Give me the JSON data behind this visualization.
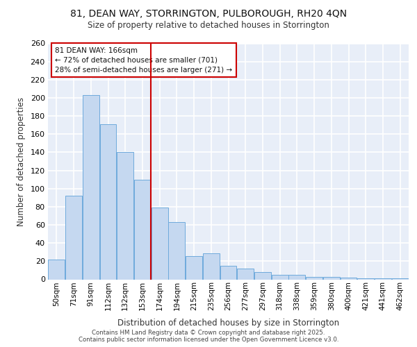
{
  "title1": "81, DEAN WAY, STORRINGTON, PULBOROUGH, RH20 4QN",
  "title2": "Size of property relative to detached houses in Storrington",
  "xlabel": "Distribution of detached houses by size in Storrington",
  "ylabel": "Number of detached properties",
  "categories": [
    "50sqm",
    "71sqm",
    "91sqm",
    "112sqm",
    "132sqm",
    "153sqm",
    "174sqm",
    "194sqm",
    "215sqm",
    "235sqm",
    "256sqm",
    "277sqm",
    "297sqm",
    "318sqm",
    "338sqm",
    "359sqm",
    "380sqm",
    "400sqm",
    "421sqm",
    "441sqm",
    "462sqm"
  ],
  "values": [
    22,
    92,
    203,
    171,
    140,
    110,
    79,
    63,
    26,
    29,
    15,
    12,
    8,
    5,
    5,
    3,
    3,
    2,
    1,
    1,
    1
  ],
  "bar_color": "#c5d8f0",
  "bar_edge_color": "#6eaadc",
  "background_color": "#e8eef8",
  "grid_color": "#ffffff",
  "vline_color": "#cc0000",
  "vline_label": "81 DEAN WAY: 166sqm",
  "annotation_line1": "← 72% of detached houses are smaller (701)",
  "annotation_line2": "28% of semi-detached houses are larger (271) →",
  "annotation_box_edge": "#cc0000",
  "annotation_box_bg": "#ffffff",
  "ylim": [
    0,
    260
  ],
  "yticks": [
    0,
    20,
    40,
    60,
    80,
    100,
    120,
    140,
    160,
    180,
    200,
    220,
    240,
    260
  ],
  "fig_bg": "#ffffff",
  "footer1": "Contains HM Land Registry data © Crown copyright and database right 2025.",
  "footer2": "Contains public sector information licensed under the Open Government Licence v3.0."
}
